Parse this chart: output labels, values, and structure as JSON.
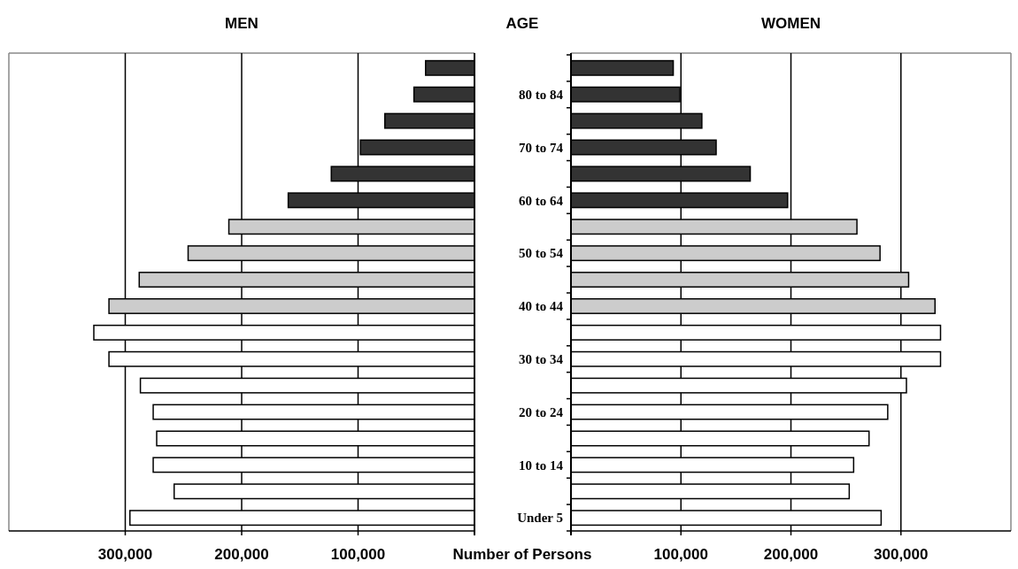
{
  "chart_data": [
    {
      "type": "bar",
      "title": "MEN",
      "xlabel": "Number of Persons",
      "orientation": "horizontal",
      "grid": "x",
      "tick_labels": "x",
      "categories": [
        null,
        null,
        null,
        null,
        null,
        null,
        null,
        null,
        null,
        null,
        null,
        null,
        null,
        null,
        null,
        null,
        null,
        null
      ],
      "values": [
        42000,
        52000,
        77000,
        98000,
        123000,
        160000,
        211000,
        246000,
        288000,
        314000,
        327000,
        314000,
        287000,
        276000,
        273000,
        276000,
        258000,
        296000
      ],
      "colors": [
        "#333333",
        "#333333",
        "#333333",
        "#333333",
        "#333333",
        "#333333",
        "#cccccc",
        "#cccccc",
        "#cccccc",
        "#cccccc",
        "#ffffff",
        "#ffffff",
        "#ffffff",
        "#ffffff",
        "#ffffff",
        "#ffffff",
        "#ffffff",
        "#ffffff"
      ],
      "xlim": [
        400000,
        0
      ],
      "xticks": [
        {
          "value": 300000,
          "label": "300,000"
        },
        {
          "value": 200000,
          "label": "200,000"
        },
        {
          "value": 100000,
          "label": "100,000"
        }
      ]
    },
    {
      "type": "bar",
      "title": "WOMEN",
      "ylabel": "AGE",
      "orientation": "horizontal",
      "grid": "x",
      "categories": [
        null,
        "80 to 84",
        null,
        "70 to 74",
        null,
        "60 to 64",
        null,
        "50 to 54",
        null,
        "40 to 44",
        null,
        "30 to 34",
        null,
        "20 to 24",
        null,
        "10 to 14",
        null,
        "Under 5"
      ],
      "values": [
        93000,
        99000,
        119000,
        132000,
        163000,
        197000,
        260000,
        281000,
        307000,
        331000,
        336000,
        336000,
        305000,
        288000,
        271000,
        257000,
        253000,
        282000
      ],
      "colors": [
        "#333333",
        "#333333",
        "#333333",
        "#333333",
        "#333333",
        "#333333",
        "#cccccc",
        "#cccccc",
        "#cccccc",
        "#cccccc",
        "#ffffff",
        "#ffffff",
        "#ffffff",
        "#ffffff",
        "#ffffff",
        "#ffffff",
        "#ffffff",
        "#ffffff"
      ],
      "xlim": [
        0,
        400000
      ],
      "xticks": [
        {
          "value": 100000,
          "label": "100,000"
        },
        {
          "value": 200000,
          "label": "200,000"
        },
        {
          "value": 300000,
          "label": "300,000"
        }
      ]
    }
  ]
}
